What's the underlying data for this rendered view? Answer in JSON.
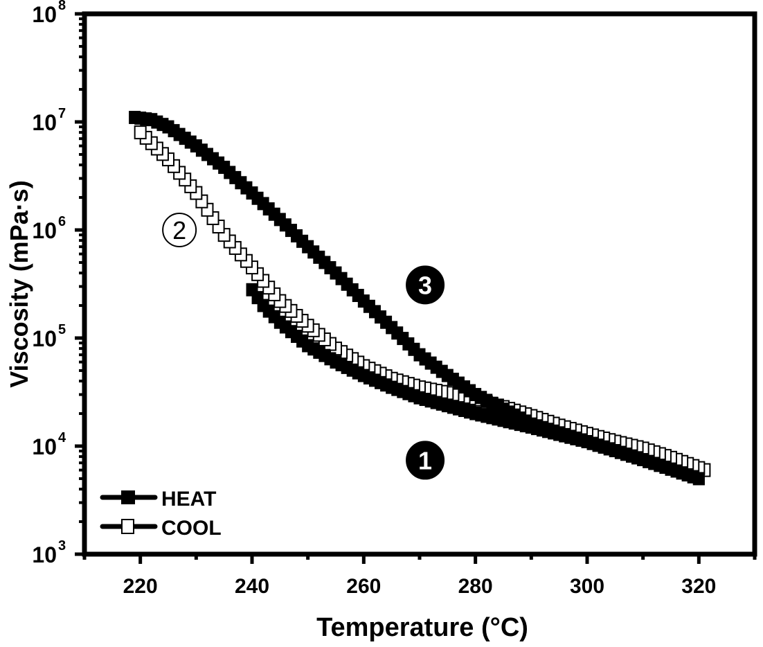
{
  "chart_data": {
    "type": "scatter",
    "title": "",
    "xlabel": "Temperature (°C)",
    "ylabel": "Viscosity (mPa·s)",
    "xlim": [
      210,
      330
    ],
    "ylim": [
      1000,
      100000000
    ],
    "yscale": "log",
    "xticks": [
      220,
      240,
      260,
      280,
      300,
      320
    ],
    "xtick_labels": [
      "220",
      "240",
      "260",
      "280",
      "300",
      "320"
    ],
    "yticks": [
      1000,
      10000,
      100000,
      1000000,
      10000000,
      100000000
    ],
    "ytick_labels": [
      {
        "base": "10",
        "exp": "3"
      },
      {
        "base": "10",
        "exp": "4"
      },
      {
        "base": "10",
        "exp": "5"
      },
      {
        "base": "10",
        "exp": "6"
      },
      {
        "base": "10",
        "exp": "7"
      },
      {
        "base": "10",
        "exp": "8"
      }
    ],
    "grid": false,
    "legend_position": "bottom-left",
    "series": [
      {
        "name": "HEAT",
        "marker": "filled-square",
        "color": "#000000",
        "segments": [
          {
            "label": "1",
            "x": [
              240,
              242,
              245,
              250,
              255,
              260,
              265,
              270,
              280,
              290,
              300,
              310,
              320
            ],
            "y": [
              280000,
              200000,
              140000,
              85000,
              60000,
              45000,
              35000,
              28000,
              20000,
              15000,
              11000,
              7500,
              5000
            ]
          },
          {
            "label": "3",
            "x": [
              219,
              222,
              225,
              230,
              235,
              240,
              245,
              250,
              255,
              260,
              265,
              270,
              275,
              280,
              285,
              290,
              300,
              310,
              320
            ],
            "y": [
              11000000,
              10500000,
              9000000,
              6000000,
              3800000,
              2200000,
              1250000,
              700000,
              400000,
              220000,
              125000,
              70000,
              45000,
              30000,
              22000,
              16000,
              11000,
              7500,
              5000
            ]
          }
        ]
      },
      {
        "name": "COOL",
        "marker": "open-square",
        "color": "#000000",
        "segments": [
          {
            "label": "2",
            "x": [
              321,
              315,
              310,
              305,
              300,
              295,
              290,
              285,
              280,
              275,
              270,
              265,
              260,
              255,
              250,
              245,
              240,
              235,
              230,
              225,
              220
            ],
            "y": [
              6000,
              7800,
              9500,
              11000,
              13000,
              15500,
              19000,
              23000,
              27000,
              31000,
              35000,
              42000,
              55000,
              80000,
              130000,
              220000,
              450000,
              900000,
              2200000,
              4500000,
              8000000
            ]
          }
        ]
      }
    ],
    "annotations": [
      {
        "text": "2",
        "style": "circled-outline",
        "x": 227,
        "y": 1000000
      },
      {
        "text": "3",
        "style": "circled-filled",
        "x": 271,
        "y": 310000
      },
      {
        "text": "1",
        "style": "circled-filled",
        "x": 271,
        "y": 7400
      }
    ]
  }
}
